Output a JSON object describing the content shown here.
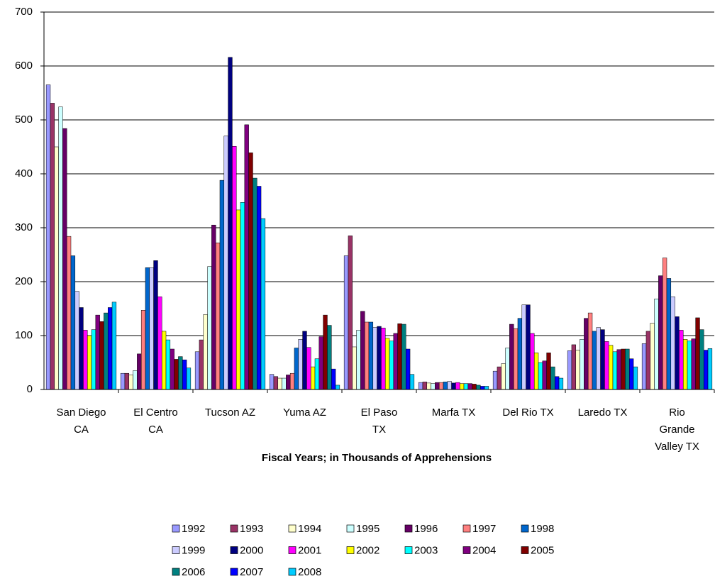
{
  "chart_data": {
    "type": "bar",
    "x_label": "Fiscal Years; in Thousands of Apprehensions",
    "categories": [
      "San Diego CA",
      "El Centro CA",
      "Tucson AZ",
      "Yuma AZ",
      "El Paso TX",
      "Marfa TX",
      "Del Rio TX",
      "Laredo TX",
      "Rio Grande Valley TX"
    ],
    "ylim": [
      0,
      700
    ],
    "yticks": [
      0,
      100,
      200,
      300,
      400,
      500,
      600,
      700
    ],
    "grid": true,
    "legend": "bottom",
    "series": [
      {
        "name": "1992",
        "color": "#9999FF",
        "values": [
          565,
          30,
          70,
          28,
          248,
          13,
          34,
          72,
          85
        ]
      },
      {
        "name": "1993",
        "color": "#993366",
        "values": [
          531,
          30,
          92,
          24,
          285,
          14,
          42,
          83,
          108
        ]
      },
      {
        "name": "1994",
        "color": "#FFFFCC",
        "values": [
          450,
          27,
          139,
          21,
          79,
          12,
          48,
          73,
          123
        ]
      },
      {
        "name": "1995",
        "color": "#CCFFFF",
        "values": [
          524,
          35,
          228,
          21,
          110,
          11,
          77,
          93,
          168
        ]
      },
      {
        "name": "1996",
        "color": "#660066",
        "values": [
          484,
          66,
          305,
          27,
          145,
          13,
          121,
          132,
          211
        ]
      },
      {
        "name": "1997",
        "color": "#FF8080",
        "values": [
          284,
          147,
          272,
          30,
          125,
          13,
          113,
          142,
          244
        ]
      },
      {
        "name": "1998",
        "color": "#0066CC",
        "values": [
          248,
          226,
          388,
          77,
          125,
          14,
          132,
          108,
          206
        ]
      },
      {
        "name": "1999",
        "color": "#CCCCFF",
        "values": [
          182,
          226,
          470,
          93,
          115,
          15,
          157,
          115,
          172
        ]
      },
      {
        "name": "2000",
        "color": "#000080",
        "values": [
          152,
          239,
          616,
          108,
          117,
          12,
          157,
          111,
          135
        ]
      },
      {
        "name": "2001",
        "color": "#FF00FF",
        "values": [
          110,
          172,
          451,
          78,
          114,
          13,
          104,
          89,
          110
        ]
      },
      {
        "name": "2002",
        "color": "#FFFF00",
        "values": [
          100,
          108,
          333,
          42,
          95,
          11,
          68,
          82,
          93
        ]
      },
      {
        "name": "2003",
        "color": "#00FFFF",
        "values": [
          111,
          92,
          347,
          57,
          90,
          11,
          50,
          70,
          90
        ]
      },
      {
        "name": "2004",
        "color": "#800080",
        "values": [
          138,
          75,
          491,
          98,
          104,
          11,
          53,
          74,
          94
        ]
      },
      {
        "name": "2005",
        "color": "#800000",
        "values": [
          126,
          56,
          439,
          138,
          122,
          10,
          68,
          75,
          133
        ]
      },
      {
        "name": "2006",
        "color": "#008080",
        "values": [
          142,
          61,
          392,
          119,
          121,
          8,
          42,
          75,
          111
        ]
      },
      {
        "name": "2007",
        "color": "#0000FF",
        "values": [
          152,
          55,
          377,
          38,
          75,
          6,
          24,
          57,
          73
        ]
      },
      {
        "name": "2008",
        "color": "#00CCFF",
        "values": [
          162,
          40,
          317,
          8,
          28,
          6,
          21,
          42,
          76
        ]
      }
    ]
  }
}
